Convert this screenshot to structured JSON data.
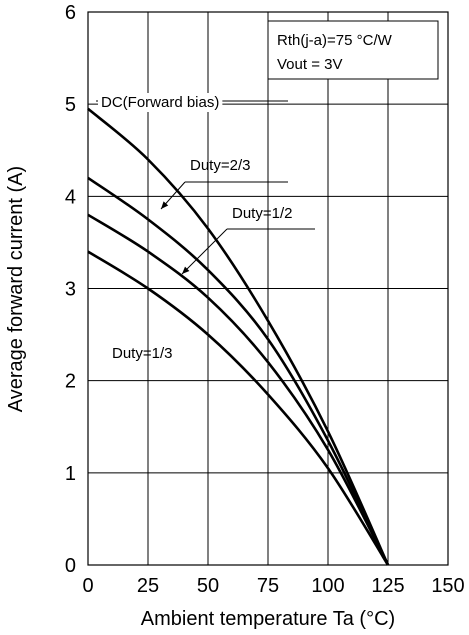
{
  "chart_data": {
    "type": "line",
    "xlabel": "Ambient temperature  Ta  (°C)",
    "ylabel": "Average forward current  (A)",
    "xlim": [
      0,
      150
    ],
    "ylim": [
      0,
      6
    ],
    "x_ticks": [
      "0",
      "25",
      "50",
      "75",
      "100",
      "125",
      "150"
    ],
    "y_ticks": [
      "0",
      "1",
      "2",
      "3",
      "4",
      "5",
      "6"
    ],
    "grid": true,
    "conditions": [
      "Rth(j-a)=75 °C/W",
      "Vout  = 3V"
    ],
    "series": [
      {
        "name": "DC(Forward bias)",
        "x": [
          0,
          25,
          50,
          75,
          100,
          125
        ],
        "y": [
          4.95,
          4.4,
          3.65,
          2.65,
          1.45,
          0
        ]
      },
      {
        "name": "Duty=2/3",
        "x": [
          0,
          25,
          50,
          75,
          100,
          125
        ],
        "y": [
          4.2,
          3.75,
          3.2,
          2.45,
          1.35,
          0
        ]
      },
      {
        "name": "Duty=1/2",
        "x": [
          0,
          25,
          50,
          75,
          100,
          125
        ],
        "y": [
          3.8,
          3.4,
          2.9,
          2.2,
          1.25,
          0
        ]
      },
      {
        "name": "Duty=1/3",
        "x": [
          0,
          25,
          50,
          75,
          100,
          125
        ],
        "y": [
          3.4,
          3.0,
          2.5,
          1.85,
          1.05,
          0
        ]
      }
    ]
  }
}
